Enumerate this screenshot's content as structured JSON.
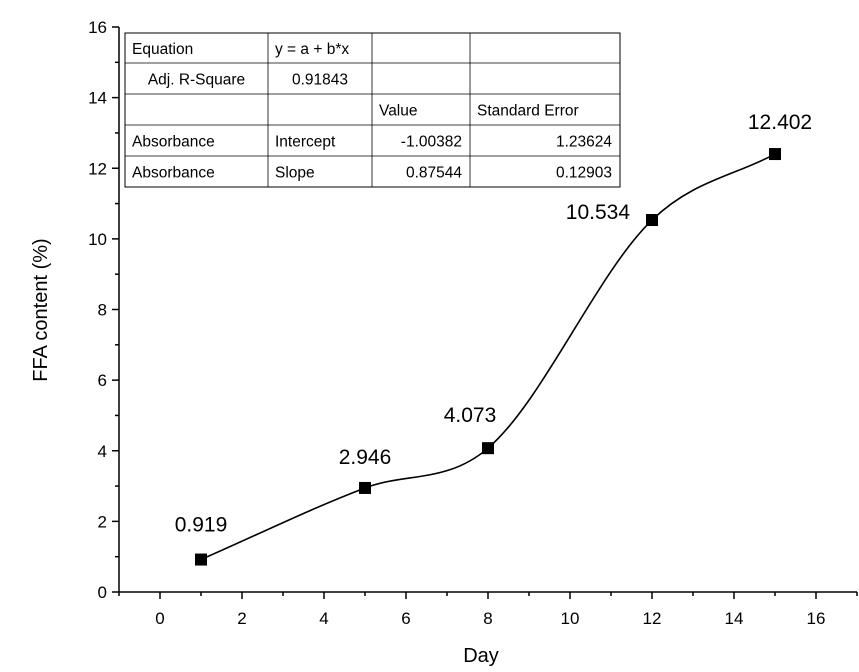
{
  "chart_data": {
    "type": "line",
    "xlabel": "Day",
    "ylabel": "FFA content (%)",
    "xlim": [
      -1,
      17
    ],
    "ylim": [
      0,
      16
    ],
    "x_ticks": [
      0,
      2,
      4,
      6,
      8,
      10,
      12,
      14,
      16
    ],
    "y_ticks": [
      0,
      2,
      4,
      6,
      8,
      10,
      12,
      14,
      16
    ],
    "series": [
      {
        "points": [
          {
            "x": 1,
            "y": 0.919,
            "label": "0.919"
          },
          {
            "x": 5,
            "y": 2.946,
            "label": "2.946"
          },
          {
            "x": 8,
            "y": 4.073,
            "label": "4.073"
          },
          {
            "x": 12,
            "y": 10.534,
            "label": "10.534"
          },
          {
            "x": 15,
            "y": 12.402,
            "label": "12.402"
          }
        ]
      }
    ],
    "marker": "square",
    "line": "smooth",
    "grid": false,
    "color": "#000000",
    "fit_table": {
      "rows": [
        [
          "Equation",
          "y = a + b*x",
          "",
          ""
        ],
        [
          "Adj. R-Square",
          "0.91843",
          "",
          ""
        ],
        [
          "",
          "",
          "Value",
          "Standard Error"
        ],
        [
          "Absorbance",
          "Intercept",
          "-1.00382",
          "1.23624"
        ],
        [
          "Absorbance",
          "Slope",
          "0.87544",
          "0.12903"
        ]
      ]
    }
  }
}
